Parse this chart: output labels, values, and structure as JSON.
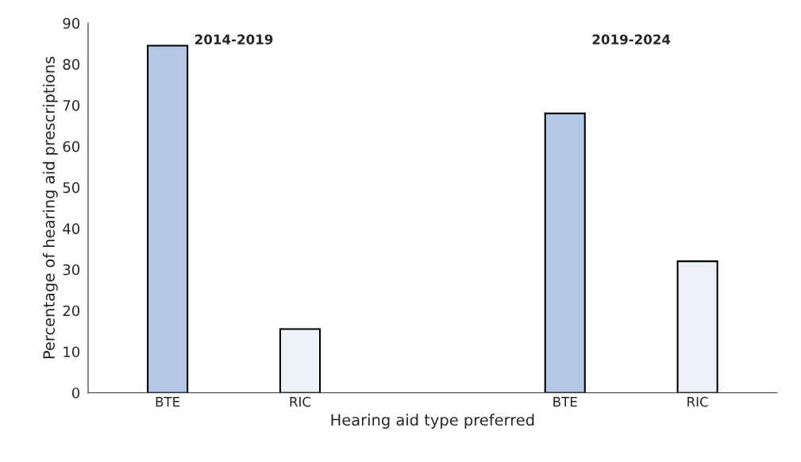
{
  "chart_data": {
    "type": "bar",
    "categories": [
      "BTE",
      "RIC",
      null,
      "BTE",
      "RIC"
    ],
    "values": [
      84.5,
      15.5,
      null,
      68,
      32
    ],
    "colors": [
      "#b4c7e7",
      "#eef2f8",
      "#ffffff",
      "#b4c7e7",
      "#eef2f8"
    ],
    "xlabel": "Hearing aid type preferred",
    "ylabel": "Percentage of hearing aid prescriptions",
    "annotations": [
      "2014-2019",
      "2019-2024"
    ],
    "ylim": [
      0,
      90
    ],
    "yticks": [
      0,
      10,
      20,
      30,
      40,
      50,
      60,
      70,
      80,
      90
    ],
    "grid": false
  }
}
